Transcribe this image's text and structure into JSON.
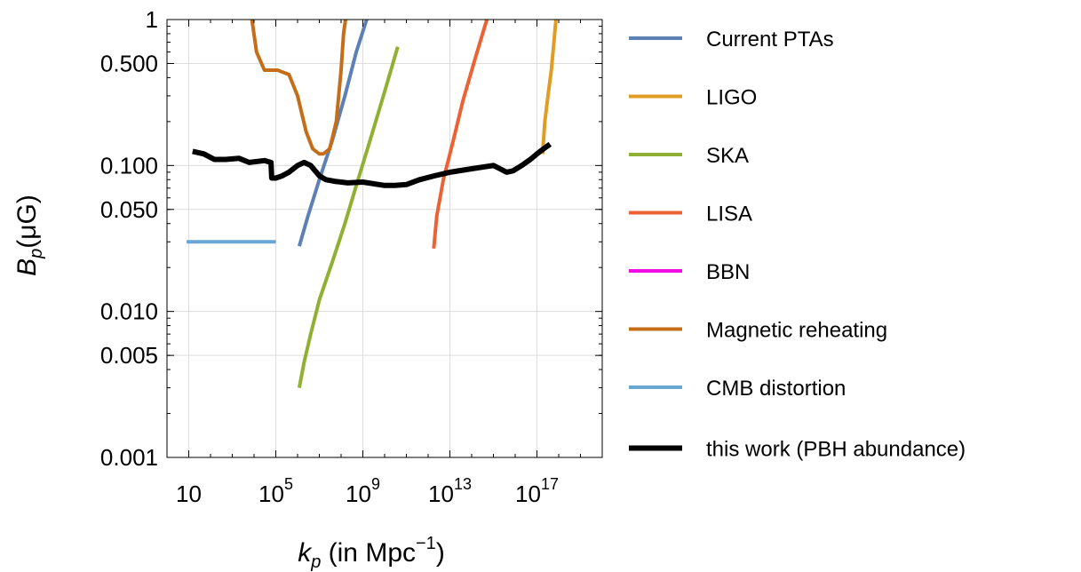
{
  "chart_data": {
    "type": "line",
    "title": "",
    "xlabel": {
      "var": "k",
      "sub": "p",
      "text": " (in Mpc",
      "sup": "−1",
      "close": ")"
    },
    "ylabel": {
      "var": "B",
      "sub": "p",
      "text": "(μG)"
    },
    "xscale": "log10",
    "yscale": "log10",
    "xlim": [
      1,
      1e+20
    ],
    "ylim": [
      0.001,
      1
    ],
    "grid": true,
    "legend_position": "right",
    "x_ticks": [
      {
        "value": 10,
        "base": "10",
        "exp": ""
      },
      {
        "value": 100000.0,
        "base": "10",
        "exp": "5"
      },
      {
        "value": 1000000000.0,
        "base": "10",
        "exp": "9"
      },
      {
        "value": 10000000000000.0,
        "base": "10",
        "exp": "13"
      },
      {
        "value": 1e+17,
        "base": "10",
        "exp": "17"
      }
    ],
    "y_ticks": [
      {
        "value": 1,
        "label": "1"
      },
      {
        "value": 0.5,
        "label": "0.500"
      },
      {
        "value": 0.1,
        "label": "0.100"
      },
      {
        "value": 0.05,
        "label": "0.050"
      },
      {
        "value": 0.01,
        "label": "0.010"
      },
      {
        "value": 0.005,
        "label": "0.005"
      },
      {
        "value": 0.001,
        "label": "0.001"
      }
    ],
    "series": [
      {
        "name": "Current PTAs",
        "color": "#5d81b4",
        "x": [
          1200000.0,
          3000000.0,
          10000000.0,
          40000000.0,
          150000000.0,
          500000000.0,
          1500000000.0
        ],
        "y": [
          0.028,
          0.045,
          0.08,
          0.15,
          0.3,
          0.6,
          1.0
        ]
      },
      {
        "name": "LIGO",
        "color": "#e19c24",
        "x": [
          1.8e+17,
          2.3e+17,
          3.2e+17,
          4.6e+17,
          6e+17,
          7.5e+17
        ],
        "y": [
          0.12,
          0.2,
          0.3,
          0.45,
          0.7,
          1.0
        ]
      },
      {
        "name": "SKA",
        "color": "#8fb032",
        "x": [
          1200000.0,
          2000000.0,
          4000000.0,
          10000000.0,
          40000000.0,
          150000000.0,
          600000000.0,
          2500000000.0,
          10000000000.0,
          40000000000.0
        ],
        "y": [
          0.003,
          0.0045,
          0.007,
          0.012,
          0.022,
          0.04,
          0.08,
          0.16,
          0.32,
          0.65
        ]
      },
      {
        "name": "LISA",
        "color": "#eb6235",
        "x": [
          1800000000000.0,
          2500000000000.0,
          5000000000000.0,
          13000000000000.0,
          40000000000000.0,
          150000000000000.0,
          500000000000000.0
        ],
        "y": [
          0.027,
          0.045,
          0.08,
          0.14,
          0.28,
          0.55,
          1.0
        ]
      },
      {
        "name": "BBN",
        "color": "#f10ee4",
        "x": [],
        "y": []
      },
      {
        "name": "Magnetic reheating",
        "color": "#c56e1a",
        "x": [
          8000.0,
          13000.0,
          30000.0,
          120000.0,
          400000.0,
          1000000.0,
          2500000.0,
          5000000.0,
          10000000.0,
          15000000.0,
          30000000.0,
          60000000.0,
          100000000.0,
          130000000.0,
          160000000.0
        ],
        "y": [
          1.0,
          0.6,
          0.45,
          0.45,
          0.42,
          0.3,
          0.17,
          0.13,
          0.12,
          0.12,
          0.13,
          0.2,
          0.45,
          0.8,
          1.0
        ]
      },
      {
        "name": "CMB distortion",
        "color": "#6aa6d4",
        "x": [
          8,
          100000.0
        ],
        "y": [
          0.03,
          0.03
        ]
      },
      {
        "name": "this work (PBH abundance)",
        "color": "#000000",
        "x": [
          15,
          50,
          150,
          500,
          2000,
          6000,
          30000.0,
          60000.0,
          65000.0,
          100000.0,
          200000.0,
          400000.0,
          1000000.0,
          2000000.0,
          4000000.0,
          10000000.0,
          20000000.0,
          50000000.0,
          200000000.0,
          1000000000.0,
          10000000000.0,
          30000000000.0,
          100000000000.0,
          400000000000.0,
          2000000000000.0,
          10000000000000.0,
          100000000000000.0,
          1000000000000000.0,
          2000000000000000.0,
          4000000000000000.0,
          8000000000000000.0,
          2e+16,
          5e+16,
          1e+17,
          2e+17,
          4e+17
        ],
        "y": [
          0.125,
          0.12,
          0.11,
          0.11,
          0.112,
          0.105,
          0.108,
          0.105,
          0.082,
          0.082,
          0.085,
          0.09,
          0.1,
          0.105,
          0.1,
          0.085,
          0.08,
          0.078,
          0.076,
          0.077,
          0.073,
          0.073,
          0.074,
          0.08,
          0.085,
          0.09,
          0.095,
          0.1,
          0.095,
          0.09,
          0.092,
          0.1,
          0.11,
          0.12,
          0.13,
          0.14
        ]
      }
    ]
  }
}
